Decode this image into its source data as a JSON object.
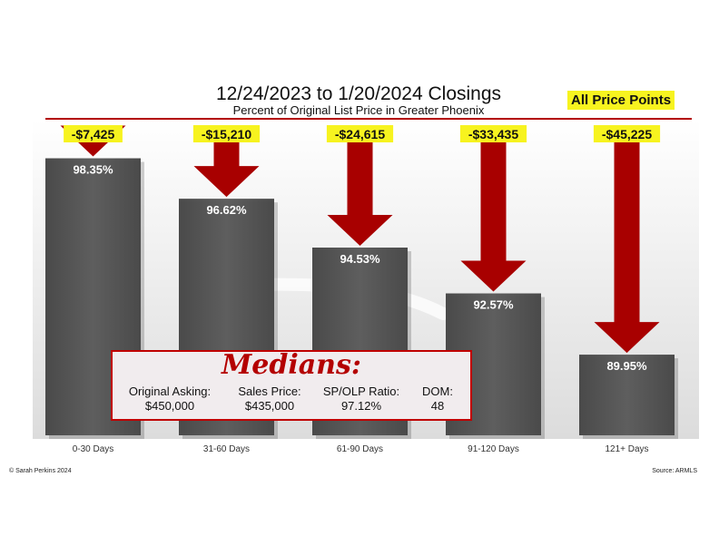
{
  "header": {
    "title": "12/24/2023 to 1/20/2024 Closings",
    "subtitle": "Percent of Original List Price in Greater Phoenix",
    "badge": "All Price Points"
  },
  "footer": {
    "copyright": "© Sarah Perkins 2024",
    "source": "Source: ARMLS"
  },
  "medians": {
    "title": "Medians:",
    "items": [
      {
        "label": "Original Asking:",
        "value": "$450,000"
      },
      {
        "label": "Sales Price:",
        "value": "$435,000"
      },
      {
        "label": "SP/OLP Ratio:",
        "value": "97.12%"
      },
      {
        "label": "DOM:",
        "value": "48"
      }
    ]
  },
  "colors": {
    "bar": "#575757",
    "arrow": "#a80000",
    "rule": "#b30000",
    "badge": "#f7f31f",
    "value_label_bg": "#f7f31f"
  },
  "chart_data": {
    "type": "bar",
    "categories": [
      "0-30 Days",
      "31-60 Days",
      "61-90 Days",
      "91-120 Days",
      "121+ Days"
    ],
    "values": [
      98.35,
      96.62,
      94.53,
      92.57,
      89.95
    ],
    "value_labels": [
      "98.35%",
      "96.62%",
      "94.53%",
      "92.57%",
      "89.95%"
    ],
    "price_reductions": [
      "-$7,425",
      "-$15,210",
      "-$24,615",
      "-$33,435",
      "-$45,225"
    ],
    "ylim": [
      86.5,
      100
    ],
    "grid": false,
    "legend": "none"
  }
}
